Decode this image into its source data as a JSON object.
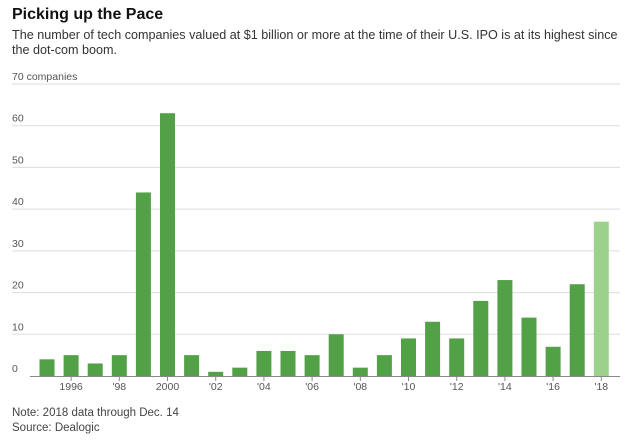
{
  "title": "Picking up the Pace",
  "subtitle": "The number of tech companies valued at $1 billion or more at the time of their U.S. IPO is at its highest since the dot-com boom.",
  "note": "Note: 2018 data through Dec. 14",
  "source": "Source: Dealogic",
  "colors": {
    "bar": "#53a147",
    "highlight": "#9cd18c",
    "grid": "#dddddd",
    "baseline": "#888888"
  },
  "chart_data": {
    "type": "bar",
    "title": "Picking up the Pace",
    "xlabel": "",
    "ylabel": "",
    "ylim": [
      0,
      70
    ],
    "y_ticks": [
      0,
      10,
      20,
      30,
      40,
      50,
      60,
      70
    ],
    "y_tick_labels": [
      "0",
      "10",
      "20",
      "30",
      "40",
      "50",
      "60",
      "70 companies"
    ],
    "categories": [
      "1995",
      "1996",
      "1997",
      "1998",
      "1999",
      "2000",
      "2001",
      "2002",
      "2003",
      "2004",
      "2005",
      "2006",
      "2007",
      "2008",
      "2009",
      "2010",
      "2011",
      "2012",
      "2013",
      "2014",
      "2015",
      "2016",
      "2017",
      "2018"
    ],
    "values": [
      4,
      5,
      3,
      5,
      44,
      63,
      5,
      1,
      2,
      6,
      6,
      5,
      10,
      2,
      5,
      9,
      13,
      9,
      18,
      23,
      14,
      7,
      22,
      37
    ],
    "x_tick_labels": [
      {
        "category": "1996",
        "label": "1996"
      },
      {
        "category": "1998",
        "label": "'98"
      },
      {
        "category": "2000",
        "label": "2000"
      },
      {
        "category": "2002",
        "label": "'02"
      },
      {
        "category": "2004",
        "label": "'04"
      },
      {
        "category": "2006",
        "label": "'06"
      },
      {
        "category": "2008",
        "label": "'08"
      },
      {
        "category": "2010",
        "label": "'10"
      },
      {
        "category": "2012",
        "label": "'12"
      },
      {
        "category": "2014",
        "label": "'14"
      },
      {
        "category": "2016",
        "label": "'16"
      },
      {
        "category": "2018",
        "label": "'18"
      }
    ],
    "highlight_category": "2018",
    "grid": true
  }
}
